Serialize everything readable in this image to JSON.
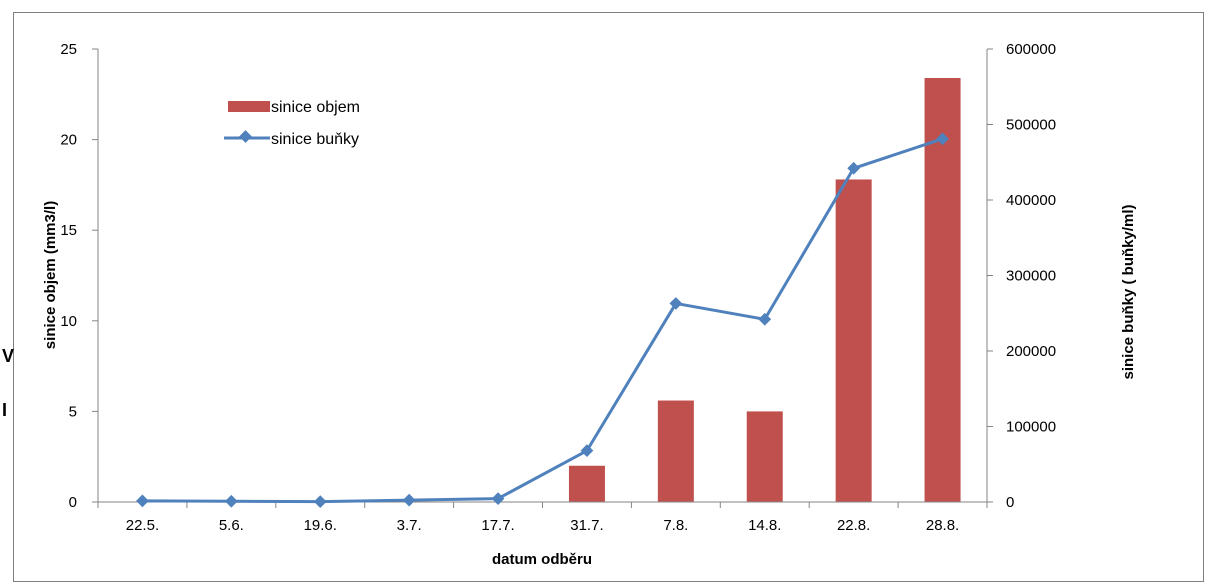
{
  "chart_data": {
    "type": "bar+line",
    "categories": [
      "22.5.",
      "5.6.",
      "19.6.",
      "3.7.",
      "17.7.",
      "31.7.",
      "7.8.",
      "14.8.",
      "22.8.",
      "28.8."
    ],
    "series": [
      {
        "name": "sinice objem",
        "type": "bar",
        "axis": "left",
        "color": "#c0504d",
        "values": [
          0,
          0,
          0,
          0,
          0,
          2.0,
          5.6,
          5.0,
          17.8,
          23.4
        ]
      },
      {
        "name": "sinice buňky",
        "type": "line",
        "axis": "right",
        "color": "#4f81bd",
        "values": [
          1500,
          1000,
          500,
          2500,
          4500,
          68000,
          263000,
          242000,
          442000,
          481000
        ]
      }
    ],
    "xlabel": "datum odběru",
    "ylabel_left": "sinice objem (mm3/l)",
    "ylabel_right": "sinice buňky ( buňky/ml)",
    "ylim_left": [
      0,
      25
    ],
    "yticks_left": [
      "0",
      "5",
      "10",
      "15",
      "20",
      "25"
    ],
    "ylim_right": [
      0,
      600000
    ],
    "yticks_right": [
      "0",
      "100000",
      "200000",
      "300000",
      "400000",
      "500000",
      "600000"
    ],
    "legend_position": "upper-left",
    "grid": false
  },
  "stray_text": [
    "V",
    "I"
  ]
}
